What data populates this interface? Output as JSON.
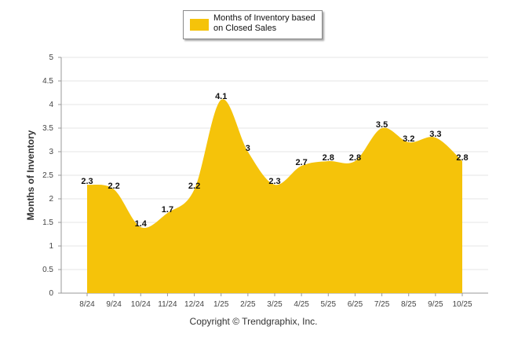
{
  "chart_data": {
    "type": "area",
    "title": "",
    "xlabel": "",
    "ylabel": "Months of Inventory",
    "ylim": [
      0,
      5
    ],
    "yticks": [
      "0",
      "0.5",
      "1",
      "1.5",
      "2",
      "2.5",
      "3",
      "3.5",
      "4",
      "4.5",
      "5"
    ],
    "grid": true,
    "legend_position": "top-center",
    "categories": [
      "8/24",
      "9/24",
      "10/24",
      "11/24",
      "12/24",
      "1/25",
      "2/25",
      "3/25",
      "4/25",
      "5/25",
      "6/25",
      "7/25",
      "8/25",
      "9/25",
      "10/25"
    ],
    "series": [
      {
        "name": "Months of Inventory based on Closed Sales",
        "color": "#f5c30a",
        "values": [
          2.3,
          2.2,
          1.4,
          1.7,
          2.2,
          4.1,
          3,
          2.3,
          2.7,
          2.8,
          2.8,
          3.5,
          3.2,
          3.3,
          2.8
        ],
        "data_labels": [
          "2.3",
          "2.2",
          "1.4",
          "1.7",
          "2.2",
          "4.1",
          "3",
          "2.3",
          "2.7",
          "2.8",
          "2.8",
          "3.5",
          "3.2",
          "3.3",
          "2.8"
        ]
      }
    ],
    "copyright": "Copyright © Trendgraphix, Inc."
  },
  "legend": {
    "line1": "Months of Inventory based",
    "line2": "on Closed Sales"
  },
  "colors": {
    "area": "#f5c30a",
    "grid": "#e6e6e6",
    "axis": "#999999"
  }
}
